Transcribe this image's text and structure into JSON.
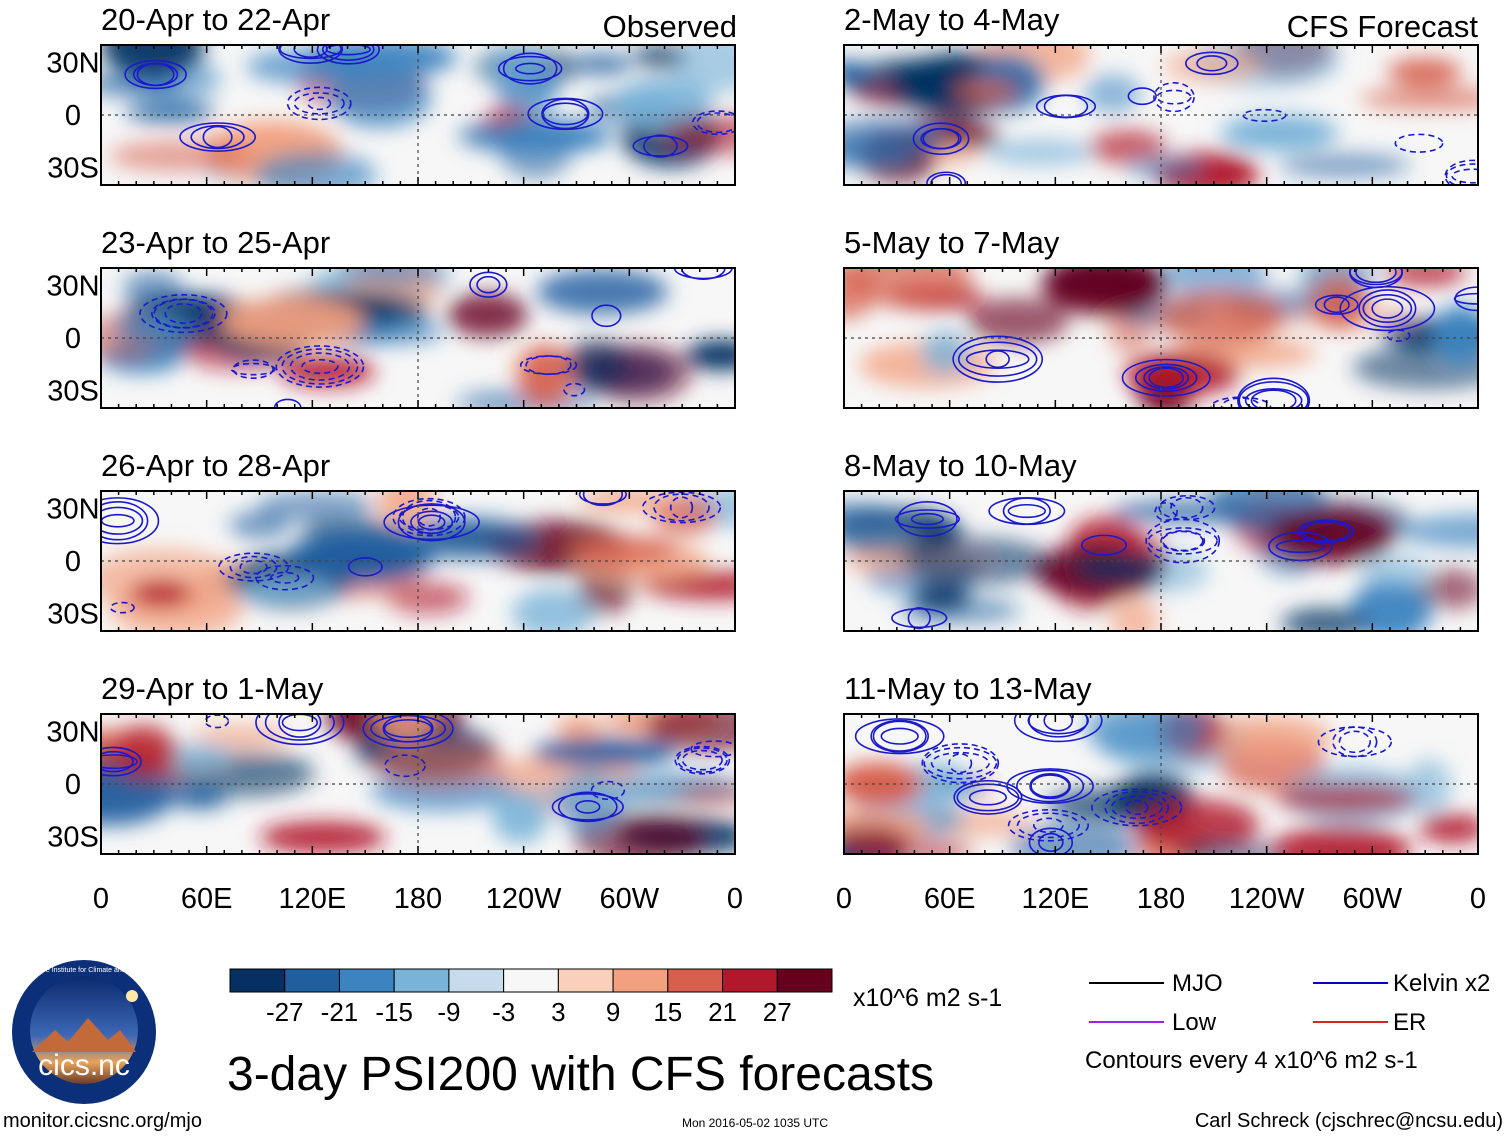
{
  "chart_data": {
    "type": "heatmap",
    "title": "3-day PSI200 with CFS forecasts",
    "variable": "PSI200 anomaly",
    "units": "x10^6 m2 s-1",
    "colorbar": {
      "ticks": [
        "-27",
        "-21",
        "-15",
        "-9",
        "-3",
        "3",
        "9",
        "15",
        "21",
        "27"
      ],
      "colors": [
        "#053061",
        "#1f5fa0",
        "#3b84c0",
        "#79b3d8",
        "#c6dcec",
        "#f7f7f7",
        "#fbd0bb",
        "#f2a07f",
        "#d6604d",
        "#b2182b",
        "#67001f"
      ]
    },
    "x_axis": {
      "ticks": [
        "0",
        "60E",
        "120E",
        "180",
        "120W",
        "60W",
        "0"
      ],
      "lon_values": [
        0,
        60,
        120,
        180,
        240,
        300,
        360
      ],
      "range": [
        0,
        360
      ]
    },
    "y_axis": {
      "ticks": [
        "30N",
        "0",
        "30S"
      ],
      "lat_values": [
        30,
        0,
        -30
      ],
      "range": [
        -40,
        40
      ]
    },
    "columns": [
      {
        "label": "Observed",
        "panels": [
          {
            "title": "20-Apr to 22-Apr"
          },
          {
            "title": "23-Apr to 25-Apr"
          },
          {
            "title": "26-Apr to 28-Apr"
          },
          {
            "title": "29-Apr to 1-May"
          }
        ]
      },
      {
        "label": "CFS Forecast",
        "panels": [
          {
            "title": "2-May to 4-May"
          },
          {
            "title": "5-May to 7-May"
          },
          {
            "title": "8-May to 10-May"
          },
          {
            "title": "11-May to 13-May"
          }
        ]
      }
    ],
    "legend": {
      "items": [
        {
          "label": "MJO",
          "color": "#000000"
        },
        {
          "label": "Kelvin x2",
          "color": "#0000cc"
        },
        {
          "label": "Low",
          "color": "#a020f0"
        },
        {
          "label": "ER",
          "color": "#dd2222"
        }
      ],
      "note": "Contours every 4 x10^6 m2 s-1"
    }
  },
  "logo": {
    "text": "cics.nc",
    "ring_text": "Cooperative Institute for Climate and Satellites"
  },
  "footer": {
    "left": "monitor.cicsnc.org/mjo",
    "center": "Mon 2016-05-02 1035 UTC",
    "right": "Carl Schreck (cjschrec@ncsu.edu)"
  }
}
